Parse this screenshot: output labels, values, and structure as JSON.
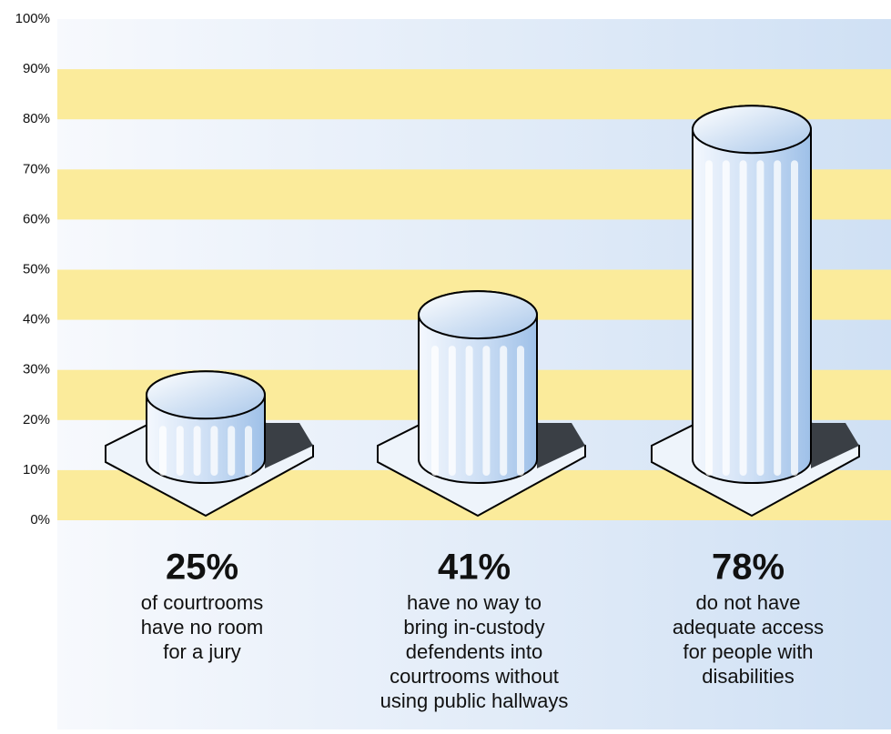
{
  "chart_data": {
    "type": "pillar",
    "categories": [
      [
        "of courtrooms",
        "have no room",
        "for a jury"
      ],
      [
        "have no way to",
        "bring in-custody",
        "defendents into",
        "courtrooms without",
        "using public hallways"
      ],
      [
        "do not have",
        "adequate access",
        "for people with",
        "disabilities"
      ]
    ],
    "values": [
      25,
      41,
      78
    ],
    "value_labels": [
      "25%",
      "41%",
      "78%"
    ],
    "ylim": [
      0,
      100
    ],
    "yticks": [
      {
        "value": 0,
        "label": "0%"
      },
      {
        "value": 10,
        "label": "10%"
      },
      {
        "value": 20,
        "label": "20%"
      },
      {
        "value": 30,
        "label": "30%"
      },
      {
        "value": 40,
        "label": "40%"
      },
      {
        "value": 50,
        "label": "50%"
      },
      {
        "value": 60,
        "label": "60%"
      },
      {
        "value": 70,
        "label": "70%"
      },
      {
        "value": 80,
        "label": "80%"
      },
      {
        "value": 90,
        "label": "90%"
      },
      {
        "value": 100,
        "label": "100%"
      }
    ],
    "band_color": "#fbeb9b",
    "color": "#dce9f7"
  }
}
